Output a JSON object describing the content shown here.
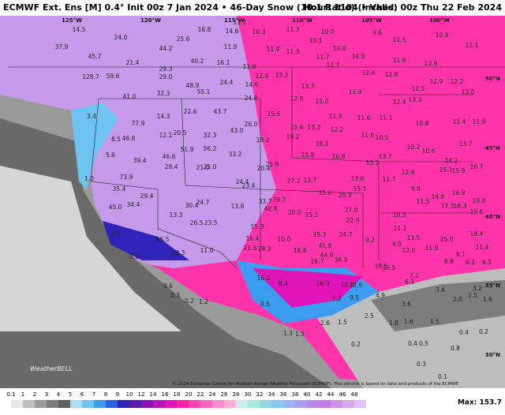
{
  "header": {
    "title": "ECMWF Ext. Ens [M] 0.4° Init 00z 7 Jan 2024 • 46-Day Snow (10:1 Ratio) (Inches)",
    "right": "Hour: 1104 • Valid: 00z Thu 22 Feb 2024"
  },
  "longitudes": [
    "125°W",
    "120°W",
    "115°W",
    "110°W",
    "105°W",
    "100°W"
  ],
  "latitudes": [
    "50°N",
    "45°N",
    "40°N",
    "35°N",
    "30°N"
  ],
  "map_values": [
    "37.9",
    "24.0",
    "14.5",
    "45.7",
    "21.4",
    "128.7",
    "59.6",
    "44.2",
    "25.6",
    "16.8",
    "14.6",
    "40.2",
    "29.3",
    "29.0",
    "16.1",
    "11.9",
    "14.6",
    "24.4",
    "48.9",
    "55.1",
    "41.0",
    "32.3",
    "24.8",
    "3.4",
    "77.9",
    "14.3",
    "22.6",
    "43.7",
    "15.6",
    "26.0",
    "43.0",
    "8.5",
    "46.8",
    "12.1",
    "20.5",
    "32.3",
    "5.6",
    "39.4",
    "51.9",
    "46.6",
    "56.2",
    "33.2",
    "18.2",
    "29.4",
    "21.0",
    "25.0",
    "20.4",
    "25.8",
    "1.0",
    "73.9",
    "35.4",
    "24.4",
    "23.4",
    "27.2",
    "13.7",
    "15.0",
    "20.3",
    "45.0",
    "34.4",
    "29.4",
    "13.3",
    "30.4",
    "24.7",
    "33.7",
    "39.7",
    "42.8",
    "13.8",
    "20.0",
    "15.2",
    "27.0",
    "22.9",
    "26.5",
    "23.5",
    "0.7",
    "86.5",
    "15.3",
    "16.4",
    "25.3",
    "24.7",
    "9.2",
    "0.2",
    "58.3",
    "11.0",
    "21.8",
    "28.3",
    "10.0",
    "18.4",
    "45.8",
    "44.8",
    "16.7",
    "36.9",
    "18.5",
    "16.0",
    "8.4",
    "16.0",
    "10.0",
    "12.6",
    "0.6",
    "0.3",
    "0.2",
    "1.2",
    "0.5",
    "5.2",
    "9.5",
    "4.9",
    "2.5",
    "2.6",
    "1.5",
    "1.3",
    "1.5",
    "1.8",
    "1.6",
    "1.5",
    "0.2",
    "0.4",
    "0.5",
    "0.8",
    "0.4",
    "0.2",
    "0.3",
    "0.1",
    "11.1",
    "10.3",
    "11.3",
    "10.0",
    "9.6",
    "10.9",
    "11.9",
    "11.3",
    "10.1",
    "10.8",
    "11.5",
    "11.1",
    "11.7",
    "12.7",
    "11.8",
    "13.9",
    "14.0",
    "11.9",
    "12.9",
    "13.2",
    "13.3",
    "12.4",
    "12.8",
    "12.9",
    "12.2",
    "12.5",
    "13.0",
    "12.9",
    "11.0",
    "11.9",
    "12.4",
    "13.3",
    "11.6",
    "11.1",
    "10.8",
    "11.4",
    "11.9",
    "11.3",
    "15.6",
    "13.2",
    "12.2",
    "19.2",
    "11.6",
    "10.5",
    "10.2",
    "10.6",
    "13.7",
    "18.1",
    "15.8",
    "16.8",
    "13.2",
    "13.7",
    "14.2",
    "15.1",
    "15.9",
    "16.7",
    "12.9",
    "13.8",
    "15.1",
    "11.7",
    "9.8",
    "14.6",
    "16.9",
    "19.8",
    "11.5",
    "17.3",
    "18.3",
    "19.6",
    "10.3",
    "11.1",
    "13.5",
    "15.0",
    "18.4",
    "9.0",
    "12.0",
    "11.9",
    "11.4",
    "8.1",
    "6.8",
    "6.3",
    "6.5",
    "10.5",
    "7.2",
    "6.3",
    "3.4",
    "3.2",
    "2.0",
    "2.5",
    "1.6",
    "3.6"
  ],
  "credit": "© 2024 European Centre for Medium-Range Weather Forecasts (ECMWF). This service is based on data and products of the ECMWF.",
  "logo": "WeatherBELL",
  "colorbar": {
    "ticks": [
      0.1,
      1,
      2,
      3,
      4,
      5,
      6,
      7,
      8,
      9,
      10,
      12,
      14,
      16,
      18,
      20,
      22,
      24,
      26,
      28,
      30,
      32,
      34,
      36,
      38,
      40,
      42,
      44,
      46,
      48
    ],
    "colors": [
      "#e8e8e8",
      "#bdbdbd",
      "#9a9a9a",
      "#7d7d7d",
      "#5f5f5f",
      "#a9dcf5",
      "#6fc3f0",
      "#3c9cf0",
      "#2e5fe8",
      "#3024b8",
      "#5a1aa8",
      "#8a10b8",
      "#b812c0",
      "#e014b8",
      "#ff22a8",
      "#ff44b4",
      "#ff66c0",
      "#ff8ccc",
      "#ffaad8",
      "#c8f0f0",
      "#a8e8e0",
      "#90d8e8",
      "#88c8f0",
      "#9ab4f4",
      "#aa9cf0",
      "#b888ec",
      "#c47ce8",
      "#cc92ec",
      "#d8a8f0",
      "#e4c0f4"
    ],
    "max_label": "Max: 153.7"
  }
}
